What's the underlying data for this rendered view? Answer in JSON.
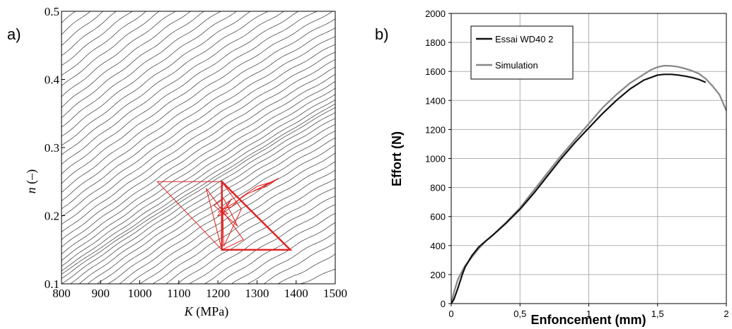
{
  "chart_data": [
    {
      "type": "contour",
      "panel_label": "a)",
      "title": "",
      "xlabel_italic": "K",
      "xlabel_unit": "(MPa)",
      "ylabel_italic": "n",
      "ylabel_unit": "(–)",
      "xlim": [
        800,
        1500
      ],
      "ylim": [
        0.1,
        0.5
      ],
      "xticks": [
        800,
        900,
        1000,
        1100,
        1200,
        1300,
        1400,
        1500
      ],
      "xtick_labels": [
        "800",
        "900",
        "1000",
        "1100",
        "1200",
        "1300",
        "1400",
        "1500"
      ],
      "yticks": [
        0.1,
        0.2,
        0.3,
        0.4,
        0.5
      ],
      "ytick_labels": [
        "0.1",
        "0.2",
        "0.3",
        "0.4",
        "0.5"
      ],
      "contour_color": "#333333",
      "contour_count": 52,
      "trajectory_color": "#e02020",
      "simplex": [
        [
          [
            1045,
            0.25
          ],
          [
            1210,
            0.25
          ],
          [
            1210,
            0.15
          ]
        ],
        [
          [
            1210,
            0.25
          ],
          [
            1210,
            0.15
          ],
          [
            1385,
            0.15
          ]
        ],
        [
          [
            1170,
            0.24
          ],
          [
            1265,
            0.165
          ],
          [
            1210,
            0.15
          ]
        ],
        [
          [
            1210,
            0.25
          ],
          [
            1260,
            0.21
          ],
          [
            1215,
            0.155
          ]
        ],
        [
          [
            1190,
            0.215
          ],
          [
            1250,
            0.185
          ],
          [
            1215,
            0.225
          ]
        ]
      ],
      "path": [
        [
          1200,
          0.205
        ],
        [
          1240,
          0.218
        ],
        [
          1275,
          0.232
        ],
        [
          1300,
          0.238
        ],
        [
          1320,
          0.245
        ],
        [
          1345,
          0.252
        ],
        [
          1355,
          0.255
        ],
        [
          1325,
          0.243
        ],
        [
          1290,
          0.236
        ],
        [
          1340,
          0.25
        ],
        [
          1300,
          0.243
        ],
        [
          1260,
          0.227
        ],
        [
          1235,
          0.213
        ],
        [
          1210,
          0.21
        ],
        [
          1225,
          0.203
        ],
        [
          1200,
          0.2
        ],
        [
          1235,
          0.225
        ],
        [
          1215,
          0.205
        ]
      ]
    },
    {
      "type": "line",
      "panel_label": "b)",
      "title": "",
      "xlabel": "Enfoncement (mm)",
      "ylabel": "Effort (N)",
      "xlim": [
        0,
        2
      ],
      "ylim": [
        0,
        2000
      ],
      "xticks": [
        0,
        0.5,
        1,
        1.5,
        2
      ],
      "xtick_labels": [
        "0",
        "0,5",
        "1",
        "1,5",
        "2"
      ],
      "yticks": [
        0,
        200,
        400,
        600,
        800,
        1000,
        1200,
        1400,
        1600,
        1800,
        2000
      ],
      "ytick_labels": [
        "0",
        "200",
        "400",
        "600",
        "800",
        "1000",
        "1200",
        "1400",
        "1600",
        "1800",
        "2000"
      ],
      "grid": true,
      "legend_position": "top-left",
      "series": [
        {
          "name": "Essai WD40 2",
          "color": "#111111",
          "x": [
            0,
            0.02,
            0.05,
            0.08,
            0.1,
            0.15,
            0.2,
            0.25,
            0.3,
            0.4,
            0.5,
            0.6,
            0.7,
            0.8,
            0.9,
            1.0,
            1.1,
            1.2,
            1.3,
            1.4,
            1.5,
            1.55,
            1.6,
            1.65,
            1.7,
            1.75,
            1.8,
            1.85
          ],
          "y": [
            0,
            30,
            110,
            200,
            250,
            330,
            390,
            430,
            470,
            555,
            650,
            760,
            880,
            1000,
            1110,
            1210,
            1310,
            1400,
            1480,
            1540,
            1575,
            1580,
            1580,
            1575,
            1568,
            1558,
            1545,
            1525
          ]
        },
        {
          "name": "Simulation",
          "color": "#888888",
          "x": [
            0,
            0.02,
            0.05,
            0.1,
            0.15,
            0.2,
            0.25,
            0.3,
            0.4,
            0.5,
            0.6,
            0.7,
            0.8,
            0.9,
            1.0,
            1.1,
            1.2,
            1.3,
            1.4,
            1.45,
            1.5,
            1.55,
            1.6,
            1.65,
            1.7,
            1.75,
            1.8,
            1.85,
            1.9,
            1.95,
            2.0
          ],
          "y": [
            0,
            80,
            170,
            260,
            320,
            380,
            430,
            470,
            560,
            660,
            780,
            900,
            1020,
            1130,
            1240,
            1350,
            1440,
            1520,
            1580,
            1610,
            1630,
            1640,
            1638,
            1632,
            1620,
            1605,
            1585,
            1550,
            1500,
            1440,
            1330
          ]
        }
      ]
    }
  ]
}
